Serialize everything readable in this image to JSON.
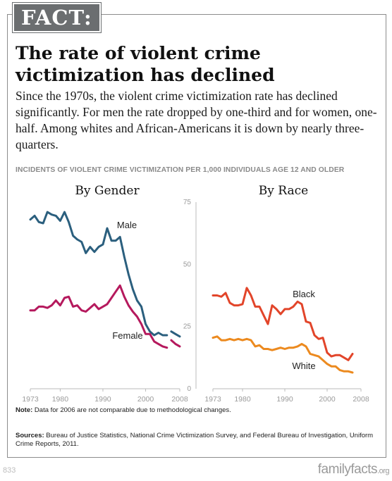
{
  "badge": "FACT:",
  "title": "The rate of violent crime victimization has declined",
  "description": "Since the 1970s, the violent crime victimization rate has declined significantly. For men the rate dropped by one-third and for women, one-half. Among whites and African-Americans it is down by nearly three-quarters.",
  "note": {
    "label": "Note:",
    "text": " Data for 2006 are not comparable due to methodological changes."
  },
  "sources": {
    "label": "Sources:",
    "text": " Bureau of Justice Statistics, National Crime Victimization Survey, and Federal Bureau of Investigation, Uniform Crime Reports, 2011."
  },
  "page_number": "833",
  "brand": {
    "main": "familyfacts",
    "suffix": ".org"
  },
  "colors": {
    "male": "#2b5f7e",
    "female": "#b5195d",
    "black": "#e2452a",
    "white": "#ec8a1f",
    "axis": "#bbbbbb",
    "tick": "#9a9a9a"
  },
  "chart_data": {
    "subtitle": "INCIDENTS OF VIOLENT CRIME VICTIMIZATION PER 1,000 INDIVIDUALS AGE 12 AND OLDER",
    "ylim": [
      0,
      75
    ],
    "yticks": [
      0,
      25,
      50,
      75
    ],
    "xlim": [
      1973,
      2008
    ],
    "xticks": [
      1973,
      1980,
      1990,
      2000,
      2008
    ],
    "grid": false,
    "charts": [
      {
        "type": "line",
        "title": "By Gender",
        "series": [
          {
            "name": "Male",
            "color": "#2b5f7e",
            "x": [
              1973,
              1974,
              1975,
              1976,
              1977,
              1978,
              1979,
              1980,
              1981,
              1982,
              1983,
              1984,
              1985,
              1986,
              1987,
              1988,
              1989,
              1990,
              1991,
              1992,
              1993,
              1994,
              1995,
              1996,
              1997,
              1998,
              1999,
              2000,
              2001,
              2002,
              2003,
              2004,
              2005
            ],
            "y": [
              68,
              69.5,
              67,
              66.5,
              71,
              70,
              69.5,
              67.5,
              71,
              67,
              61.5,
              60,
              59,
              54.5,
              57,
              55,
              57,
              58,
              64.5,
              59.5,
              59.5,
              61,
              53,
              46,
              40,
              35.5,
              33,
              26,
              23,
              21.5,
              22.5,
              21.5,
              21.5
            ],
            "x2": [
              2006,
              2007,
              2008
            ],
            "y2": [
              23,
              22,
              21
            ]
          },
          {
            "name": "Female",
            "color": "#b5195d",
            "x": [
              1973,
              1974,
              1975,
              1976,
              1977,
              1978,
              1979,
              1980,
              1981,
              1982,
              1983,
              1984,
              1985,
              1986,
              1987,
              1988,
              1989,
              1990,
              1991,
              1992,
              1993,
              1994,
              1995,
              1996,
              1997,
              1998,
              1999,
              2000,
              2001,
              2002,
              2003,
              2004,
              2005
            ],
            "y": [
              31.5,
              31.5,
              33,
              33,
              32.5,
              33.5,
              35.5,
              33.5,
              36.5,
              37,
              33,
              33.5,
              31.5,
              31,
              32.5,
              34,
              32,
              33,
              34,
              36.5,
              39,
              41.5,
              37,
              33.5,
              31,
              29,
              26,
              22,
              22,
              19,
              18,
              17,
              16.5
            ],
            "x2": [
              2006,
              2007,
              2008
            ],
            "y2": [
              19.5,
              18,
              17
            ]
          }
        ]
      },
      {
        "type": "line",
        "title": "By Race",
        "series": [
          {
            "name": "Black",
            "color": "#e2452a",
            "x": [
              1973,
              1974,
              1975,
              1976,
              1977,
              1978,
              1979,
              1980,
              1981,
              1982,
              1983,
              1984,
              1985,
              1986,
              1987,
              1988,
              1989,
              1990,
              1991,
              1992,
              1993,
              1994,
              1995,
              1996,
              1997,
              1998,
              1999,
              2000,
              2001,
              2002,
              2003,
              2004,
              2005,
              2006
            ],
            "y": [
              37.5,
              37.5,
              37,
              38.5,
              34.5,
              33.5,
              33.5,
              34,
              40.5,
              37.5,
              33,
              33,
              29.5,
              26,
              33.5,
              32,
              30,
              32,
              32,
              33,
              35,
              34,
              27,
              26.5,
              21.5,
              20,
              20.5,
              14.5,
              13,
              13.5,
              13.5,
              12.5,
              11.5,
              14
            ]
          },
          {
            "name": "White",
            "color": "#ec8a1f",
            "x": [
              1973,
              1974,
              1975,
              1976,
              1977,
              1978,
              1979,
              1980,
              1981,
              1982,
              1983,
              1984,
              1985,
              1986,
              1987,
              1988,
              1989,
              1990,
              1991,
              1992,
              1993,
              1994,
              1995,
              1996,
              1997,
              1998,
              1999,
              2000,
              2001,
              2002,
              2003,
              2004,
              2005,
              2006
            ],
            "y": [
              20.5,
              21,
              19.5,
              19.5,
              20,
              19.5,
              20,
              19.5,
              20,
              19.5,
              17,
              17.5,
              16,
              16,
              15.5,
              16,
              16.5,
              16,
              16.5,
              16.5,
              17,
              18,
              17,
              14,
              13.5,
              13,
              11.5,
              10,
              9,
              9,
              7.5,
              7,
              7,
              6.5
            ]
          }
        ]
      }
    ]
  }
}
